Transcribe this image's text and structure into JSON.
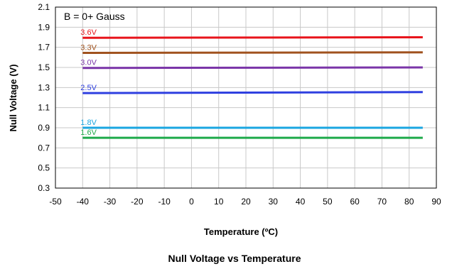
{
  "chart_data": {
    "type": "line",
    "title": "Null Voltage vs Temperature",
    "xlabel": "Temperature (ºC)",
    "ylabel": "Null Voltage (V)",
    "xlim": [
      -50,
      90
    ],
    "ylim": [
      0.3,
      2.1
    ],
    "xticks": [
      -50,
      -40,
      -30,
      -20,
      -10,
      0,
      10,
      20,
      30,
      40,
      50,
      60,
      70,
      80,
      90
    ],
    "yticks": [
      0.3,
      0.5,
      0.7,
      0.9,
      1.1,
      1.3,
      1.5,
      1.7,
      1.9,
      2.1
    ],
    "grid": true,
    "annotation": "B = 0+ Gauss",
    "x": [
      -40,
      85
    ],
    "series": [
      {
        "name": "3.6V",
        "color": "#e8141b",
        "values": [
          1.795,
          1.8
        ]
      },
      {
        "name": "3.3V",
        "color": "#a0521e",
        "values": [
          1.645,
          1.65
        ]
      },
      {
        "name": "3.0V",
        "color": "#7a35a8",
        "values": [
          1.495,
          1.5
        ]
      },
      {
        "name": "2.5V",
        "color": "#2e3fe0",
        "values": [
          1.245,
          1.255
        ]
      },
      {
        "name": "1.8V",
        "color": "#1aa6e0",
        "values": [
          0.9,
          0.9
        ]
      },
      {
        "name": "1.6V",
        "color": "#1faa4a",
        "values": [
          0.8,
          0.8
        ]
      }
    ]
  }
}
